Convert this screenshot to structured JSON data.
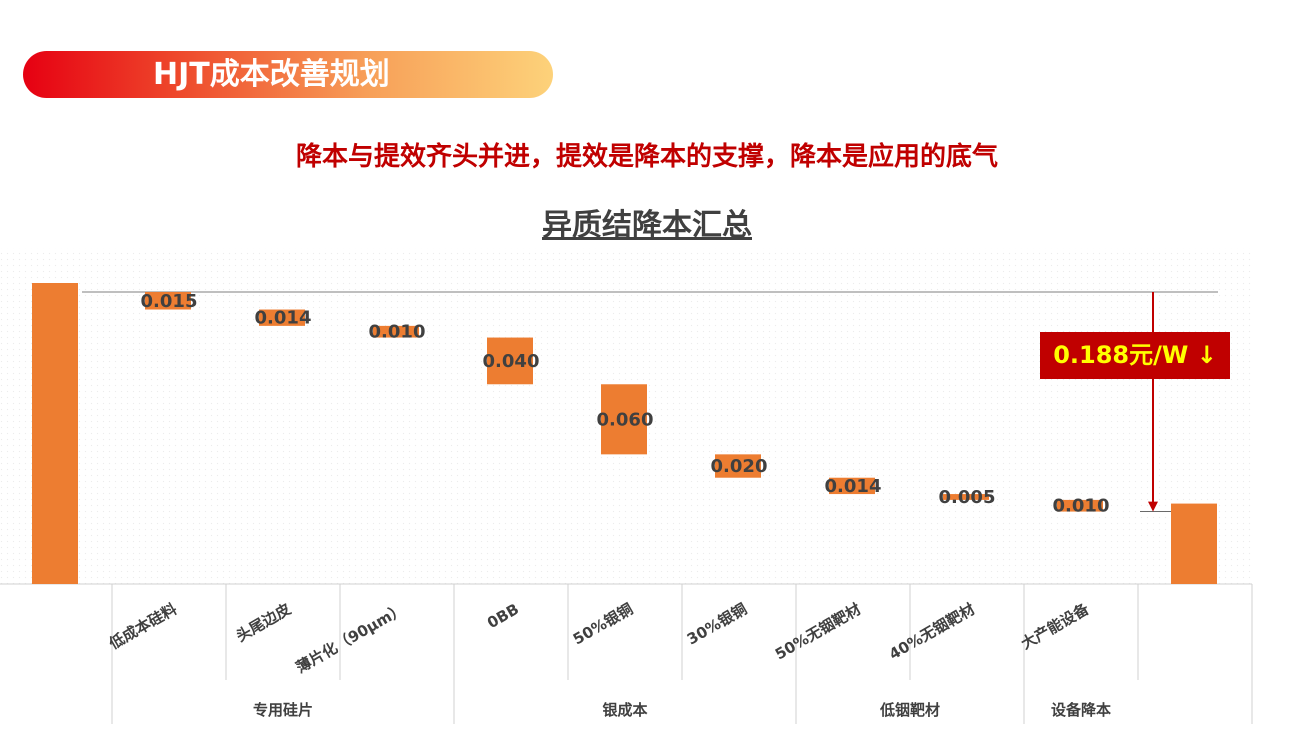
{
  "header": {
    "title": "HJT成本改善规划"
  },
  "subtitle": "降本与提效齐头并进，提效是降本的支撑，降本是应用的底气",
  "callout": "0.188元/W ↓",
  "colors": {
    "bar": "#ED7D31",
    "accent": "#C00000",
    "callout_text": "#FFFF00",
    "label": "#404040"
  },
  "chart_data": {
    "type": "bar",
    "subtype": "waterfall",
    "title": "异质结降本汇总",
    "categories": [
      "",
      "低成本硅料",
      "头尾边皮",
      "薄片化（90μm）",
      "0BB",
      "50%银铜",
      "30%银铜",
      "50%无铟靶材",
      "40%无铟靶材",
      "大产能设备",
      ""
    ],
    "groups": [
      {
        "label": "专用硅片",
        "span": [
          1,
          3
        ]
      },
      {
        "label": "银成本",
        "span": [
          4,
          6
        ]
      },
      {
        "label": "低铟靶材",
        "span": [
          7,
          8
        ]
      },
      {
        "label": "设备降本",
        "span": [
          9,
          9
        ]
      }
    ],
    "steps": [
      0.015,
      0.014,
      0.01,
      0.04,
      0.06,
      0.02,
      0.014,
      0.005,
      0.01
    ],
    "step_labels": [
      "0.015",
      "0.014",
      "0.010",
      "0.040",
      "0.060",
      "0.020",
      "0.014",
      "0.005",
      "0.010"
    ],
    "total_reduction": 0.188,
    "grid": false
  }
}
